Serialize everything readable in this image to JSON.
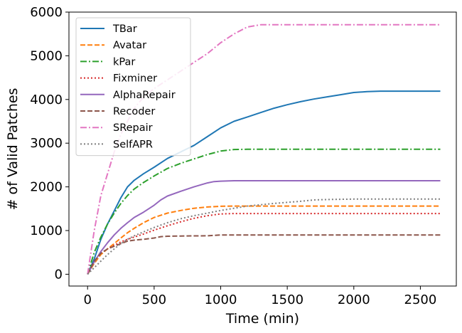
{
  "chart_data": {
    "type": "line",
    "xlabel": "Time (min)",
    "ylabel": "# of Valid Patches",
    "xlim": [
      -140,
      2770
    ],
    "ylim": [
      -270,
      6000
    ],
    "xticks": [
      0,
      500,
      1000,
      1500,
      2000,
      2500
    ],
    "yticks": [
      0,
      1000,
      2000,
      3000,
      4000,
      5000,
      6000
    ],
    "grid": false,
    "legend_position": "top-left",
    "series": [
      {
        "name": "TBar",
        "color": "#1f77b4",
        "dash": "solid",
        "x": [
          0,
          50,
          100,
          150,
          200,
          250,
          300,
          350,
          420,
          500,
          600,
          700,
          800,
          900,
          1000,
          1100,
          1200,
          1300,
          1400,
          1500,
          1600,
          1700,
          1800,
          1900,
          2000,
          2100,
          2200,
          2300,
          2400,
          2500,
          2650
        ],
        "y": [
          0,
          350,
          800,
          1150,
          1450,
          1750,
          2000,
          2150,
          2300,
          2450,
          2650,
          2800,
          2950,
          3150,
          3350,
          3500,
          3600,
          3700,
          3800,
          3880,
          3950,
          4010,
          4060,
          4110,
          4160,
          4180,
          4190,
          4190,
          4190,
          4190,
          4190
        ]
      },
      {
        "name": "Avatar",
        "color": "#ff7f0e",
        "dash": "dashed",
        "x": [
          0,
          50,
          100,
          150,
          200,
          250,
          300,
          350,
          420,
          500,
          600,
          700,
          800,
          900,
          1000,
          1100,
          1500,
          2000,
          2650
        ],
        "y": [
          0,
          250,
          450,
          580,
          700,
          830,
          950,
          1050,
          1180,
          1300,
          1400,
          1460,
          1510,
          1540,
          1555,
          1560,
          1560,
          1560,
          1560
        ]
      },
      {
        "name": "kPar",
        "color": "#2ca02c",
        "dash": "dashdot",
        "x": [
          0,
          50,
          100,
          150,
          200,
          250,
          300,
          350,
          420,
          500,
          600,
          700,
          800,
          900,
          1000,
          1100,
          1200,
          1500,
          2000,
          2650
        ],
        "y": [
          0,
          500,
          850,
          1150,
          1400,
          1620,
          1800,
          1950,
          2100,
          2250,
          2420,
          2540,
          2640,
          2740,
          2820,
          2855,
          2860,
          2860,
          2860,
          2860
        ]
      },
      {
        "name": "Fixminer",
        "color": "#d62728",
        "dash": "dotted",
        "x": [
          0,
          50,
          100,
          150,
          200,
          250,
          300,
          350,
          420,
          500,
          600,
          700,
          800,
          900,
          1000,
          1100,
          1500,
          2000,
          2650
        ],
        "y": [
          0,
          300,
          480,
          580,
          660,
          740,
          800,
          850,
          920,
          1010,
          1110,
          1200,
          1280,
          1340,
          1380,
          1390,
          1390,
          1390,
          1390
        ]
      },
      {
        "name": "AlphaRepair",
        "color": "#9467bd",
        "dash": "solid",
        "x": [
          0,
          50,
          100,
          150,
          200,
          250,
          300,
          350,
          420,
          500,
          550,
          600,
          700,
          800,
          900,
          950,
          1000,
          1100,
          1500,
          2000,
          2650
        ],
        "y": [
          0,
          280,
          520,
          720,
          900,
          1050,
          1180,
          1300,
          1420,
          1580,
          1700,
          1790,
          1900,
          2000,
          2090,
          2120,
          2130,
          2140,
          2140,
          2140,
          2140
        ]
      },
      {
        "name": "Recoder",
        "color": "#8c564b",
        "dash": "dashed",
        "x": [
          0,
          50,
          100,
          150,
          200,
          250,
          300,
          350,
          420,
          500,
          550,
          600,
          700,
          800,
          900,
          950,
          1000,
          1050,
          1500,
          2000,
          2650
        ],
        "y": [
          0,
          300,
          480,
          580,
          640,
          700,
          760,
          780,
          800,
          830,
          860,
          870,
          875,
          878,
          880,
          890,
          900,
          900,
          900,
          900,
          900
        ]
      },
      {
        "name": "SRepair",
        "color": "#e377c2",
        "dash": "dashdot",
        "x": [
          0,
          50,
          100,
          150,
          200,
          250,
          300,
          350,
          420,
          500,
          600,
          700,
          800,
          900,
          1000,
          1100,
          1200,
          1300,
          1500,
          2000,
          2650
        ],
        "y": [
          0,
          1000,
          1800,
          2300,
          2800,
          3200,
          3500,
          3800,
          4050,
          4250,
          4450,
          4650,
          4850,
          5050,
          5300,
          5500,
          5660,
          5710,
          5710,
          5710,
          5710
        ]
      },
      {
        "name": "SelfAPR",
        "color": "#7f7f7f",
        "dash": "dotted",
        "x": [
          0,
          50,
          100,
          150,
          200,
          250,
          300,
          350,
          420,
          500,
          600,
          700,
          800,
          900,
          1000,
          1200,
          1400,
          1600,
          1700,
          1800,
          1900,
          2000,
          2650
        ],
        "y": [
          0,
          150,
          300,
          450,
          580,
          700,
          800,
          880,
          970,
          1070,
          1180,
          1270,
          1340,
          1400,
          1460,
          1560,
          1620,
          1670,
          1700,
          1710,
          1715,
          1720,
          1720
        ]
      }
    ]
  }
}
